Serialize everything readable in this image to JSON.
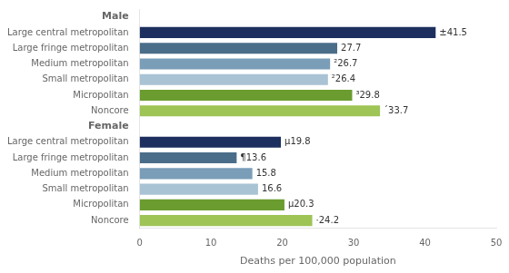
{
  "chart_data": {
    "type": "bar",
    "orientation": "horizontal",
    "xlabel": "Deaths per 100,000 population",
    "xlim": [
      0,
      50
    ],
    "xticks": [
      0,
      10,
      20,
      30,
      40,
      50
    ],
    "grid": false,
    "data_labels": true,
    "categories": [
      "Large central metropolitan",
      "Large fringe metropolitan",
      "Medium metropolitan",
      "Small metropolitan",
      "Micropolitan",
      "Noncore"
    ],
    "colors": [
      "#1c2f5e",
      "#4a6e8a",
      "#7a9db8",
      "#a9c2d4",
      "#6a9c2f",
      "#9dc455"
    ],
    "series": [
      {
        "name": "Male",
        "values": [
          41.5,
          27.7,
          26.7,
          26.4,
          29.8,
          33.7
        ],
        "value_labels": [
          "±41.5",
          "27.7",
          "²26.7",
          "²26.4",
          "³29.8",
          "´33.7"
        ]
      },
      {
        "name": "Female",
        "values": [
          19.8,
          13.6,
          15.8,
          16.6,
          20.3,
          24.2
        ],
        "value_labels": [
          "µ19.8",
          "¶13.6",
          "15.8",
          "16.6",
          "µ20.3",
          "·24.2"
        ]
      }
    ]
  }
}
